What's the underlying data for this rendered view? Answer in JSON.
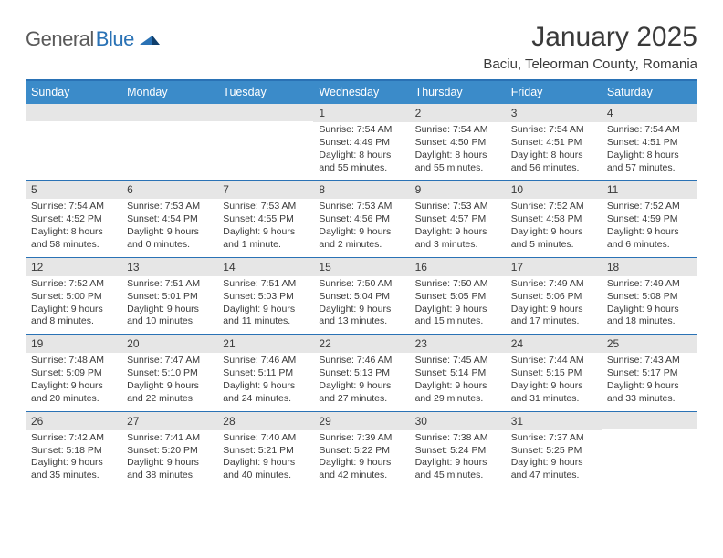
{
  "logo": {
    "part1": "General",
    "part2": "Blue"
  },
  "header": {
    "month_title": "January 2025",
    "location": "Baciu, Teleorman County, Romania"
  },
  "styling": {
    "page_bg": "#ffffff",
    "accent": "#2a72b5",
    "weekday_bg": "#3b8bc9",
    "weekday_fg": "#ffffff",
    "daynum_bg": "#e6e6e6",
    "text_color": "#3a3a3a",
    "logo_gray": "#5a5a5a",
    "month_title_fontsize": 30,
    "location_fontsize": 15,
    "weekday_fontsize": 12.5,
    "daynum_fontsize": 12,
    "info_fontsize": 10.5
  },
  "weekdays": [
    "Sunday",
    "Monday",
    "Tuesday",
    "Wednesday",
    "Thursday",
    "Friday",
    "Saturday"
  ],
  "weeks": [
    [
      {
        "day": "",
        "lines": []
      },
      {
        "day": "",
        "lines": []
      },
      {
        "day": "",
        "lines": []
      },
      {
        "day": "1",
        "lines": [
          "Sunrise: 7:54 AM",
          "Sunset: 4:49 PM",
          "Daylight: 8 hours",
          "and 55 minutes."
        ]
      },
      {
        "day": "2",
        "lines": [
          "Sunrise: 7:54 AM",
          "Sunset: 4:50 PM",
          "Daylight: 8 hours",
          "and 55 minutes."
        ]
      },
      {
        "day": "3",
        "lines": [
          "Sunrise: 7:54 AM",
          "Sunset: 4:51 PM",
          "Daylight: 8 hours",
          "and 56 minutes."
        ]
      },
      {
        "day": "4",
        "lines": [
          "Sunrise: 7:54 AM",
          "Sunset: 4:51 PM",
          "Daylight: 8 hours",
          "and 57 minutes."
        ]
      }
    ],
    [
      {
        "day": "5",
        "lines": [
          "Sunrise: 7:54 AM",
          "Sunset: 4:52 PM",
          "Daylight: 8 hours",
          "and 58 minutes."
        ]
      },
      {
        "day": "6",
        "lines": [
          "Sunrise: 7:53 AM",
          "Sunset: 4:54 PM",
          "Daylight: 9 hours",
          "and 0 minutes."
        ]
      },
      {
        "day": "7",
        "lines": [
          "Sunrise: 7:53 AM",
          "Sunset: 4:55 PM",
          "Daylight: 9 hours",
          "and 1 minute."
        ]
      },
      {
        "day": "8",
        "lines": [
          "Sunrise: 7:53 AM",
          "Sunset: 4:56 PM",
          "Daylight: 9 hours",
          "and 2 minutes."
        ]
      },
      {
        "day": "9",
        "lines": [
          "Sunrise: 7:53 AM",
          "Sunset: 4:57 PM",
          "Daylight: 9 hours",
          "and 3 minutes."
        ]
      },
      {
        "day": "10",
        "lines": [
          "Sunrise: 7:52 AM",
          "Sunset: 4:58 PM",
          "Daylight: 9 hours",
          "and 5 minutes."
        ]
      },
      {
        "day": "11",
        "lines": [
          "Sunrise: 7:52 AM",
          "Sunset: 4:59 PM",
          "Daylight: 9 hours",
          "and 6 minutes."
        ]
      }
    ],
    [
      {
        "day": "12",
        "lines": [
          "Sunrise: 7:52 AM",
          "Sunset: 5:00 PM",
          "Daylight: 9 hours",
          "and 8 minutes."
        ]
      },
      {
        "day": "13",
        "lines": [
          "Sunrise: 7:51 AM",
          "Sunset: 5:01 PM",
          "Daylight: 9 hours",
          "and 10 minutes."
        ]
      },
      {
        "day": "14",
        "lines": [
          "Sunrise: 7:51 AM",
          "Sunset: 5:03 PM",
          "Daylight: 9 hours",
          "and 11 minutes."
        ]
      },
      {
        "day": "15",
        "lines": [
          "Sunrise: 7:50 AM",
          "Sunset: 5:04 PM",
          "Daylight: 9 hours",
          "and 13 minutes."
        ]
      },
      {
        "day": "16",
        "lines": [
          "Sunrise: 7:50 AM",
          "Sunset: 5:05 PM",
          "Daylight: 9 hours",
          "and 15 minutes."
        ]
      },
      {
        "day": "17",
        "lines": [
          "Sunrise: 7:49 AM",
          "Sunset: 5:06 PM",
          "Daylight: 9 hours",
          "and 17 minutes."
        ]
      },
      {
        "day": "18",
        "lines": [
          "Sunrise: 7:49 AM",
          "Sunset: 5:08 PM",
          "Daylight: 9 hours",
          "and 18 minutes."
        ]
      }
    ],
    [
      {
        "day": "19",
        "lines": [
          "Sunrise: 7:48 AM",
          "Sunset: 5:09 PM",
          "Daylight: 9 hours",
          "and 20 minutes."
        ]
      },
      {
        "day": "20",
        "lines": [
          "Sunrise: 7:47 AM",
          "Sunset: 5:10 PM",
          "Daylight: 9 hours",
          "and 22 minutes."
        ]
      },
      {
        "day": "21",
        "lines": [
          "Sunrise: 7:46 AM",
          "Sunset: 5:11 PM",
          "Daylight: 9 hours",
          "and 24 minutes."
        ]
      },
      {
        "day": "22",
        "lines": [
          "Sunrise: 7:46 AM",
          "Sunset: 5:13 PM",
          "Daylight: 9 hours",
          "and 27 minutes."
        ]
      },
      {
        "day": "23",
        "lines": [
          "Sunrise: 7:45 AM",
          "Sunset: 5:14 PM",
          "Daylight: 9 hours",
          "and 29 minutes."
        ]
      },
      {
        "day": "24",
        "lines": [
          "Sunrise: 7:44 AM",
          "Sunset: 5:15 PM",
          "Daylight: 9 hours",
          "and 31 minutes."
        ]
      },
      {
        "day": "25",
        "lines": [
          "Sunrise: 7:43 AM",
          "Sunset: 5:17 PM",
          "Daylight: 9 hours",
          "and 33 minutes."
        ]
      }
    ],
    [
      {
        "day": "26",
        "lines": [
          "Sunrise: 7:42 AM",
          "Sunset: 5:18 PM",
          "Daylight: 9 hours",
          "and 35 minutes."
        ]
      },
      {
        "day": "27",
        "lines": [
          "Sunrise: 7:41 AM",
          "Sunset: 5:20 PM",
          "Daylight: 9 hours",
          "and 38 minutes."
        ]
      },
      {
        "day": "28",
        "lines": [
          "Sunrise: 7:40 AM",
          "Sunset: 5:21 PM",
          "Daylight: 9 hours",
          "and 40 minutes."
        ]
      },
      {
        "day": "29",
        "lines": [
          "Sunrise: 7:39 AM",
          "Sunset: 5:22 PM",
          "Daylight: 9 hours",
          "and 42 minutes."
        ]
      },
      {
        "day": "30",
        "lines": [
          "Sunrise: 7:38 AM",
          "Sunset: 5:24 PM",
          "Daylight: 9 hours",
          "and 45 minutes."
        ]
      },
      {
        "day": "31",
        "lines": [
          "Sunrise: 7:37 AM",
          "Sunset: 5:25 PM",
          "Daylight: 9 hours",
          "and 47 minutes."
        ]
      },
      {
        "day": "",
        "lines": []
      }
    ]
  ]
}
